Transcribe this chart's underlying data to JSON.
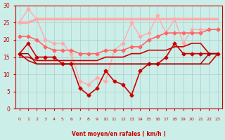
{
  "x": [
    0,
    1,
    2,
    3,
    4,
    5,
    6,
    7,
    8,
    9,
    10,
    11,
    12,
    13,
    14,
    15,
    16,
    17,
    18,
    19,
    20,
    21,
    22,
    23
  ],
  "series": [
    {
      "name": "line1_light_pink_flat",
      "color": "#ffaaaa",
      "lw": 2.5,
      "marker": null,
      "y": [
        25,
        25,
        26,
        26,
        26,
        26,
        26,
        26,
        26,
        26,
        26,
        26,
        26,
        26,
        26,
        26,
        26,
        26,
        26,
        26,
        26,
        26,
        26,
        26
      ]
    },
    {
      "name": "line2_light_pink_wavy",
      "color": "#ffaaaa",
      "lw": 1.0,
      "marker": "D",
      "markersize": 2.5,
      "y": [
        25,
        29,
        26,
        20,
        19,
        19,
        16,
        8,
        7,
        9,
        8,
        17,
        19,
        25,
        21,
        22,
        27,
        22,
        26,
        19,
        23,
        23,
        23,
        23
      ]
    },
    {
      "name": "line3_medium_pink",
      "color": "#ff6666",
      "lw": 1.2,
      "marker": "D",
      "markersize": 2.5,
      "y": [
        21,
        21,
        20,
        18,
        17,
        17,
        17,
        16,
        16,
        16,
        17,
        17,
        17,
        18,
        18,
        20,
        21,
        22,
        22,
        22,
        22,
        22,
        23,
        23
      ]
    },
    {
      "name": "line4_dark_red_diagonal",
      "color": "#cc0000",
      "lw": 1.2,
      "marker": "D",
      "markersize": 2.5,
      "y": [
        16,
        19,
        15,
        15,
        15,
        13,
        13,
        6,
        4,
        6,
        11,
        8,
        7,
        4,
        11,
        13,
        13,
        15,
        19,
        16,
        16,
        16,
        16,
        16
      ]
    },
    {
      "name": "line5_dark_red_flat1",
      "color": "#cc0000",
      "lw": 1.2,
      "marker": null,
      "y": [
        16,
        14,
        13,
        13,
        13,
        13,
        13,
        13,
        13,
        13,
        13,
        13,
        13,
        13,
        13,
        13,
        13,
        13,
        13,
        13,
        13,
        13,
        13,
        16
      ]
    },
    {
      "name": "line6_dark_red_slight_slope",
      "color": "#cc0000",
      "lw": 1.2,
      "marker": null,
      "y": [
        15,
        15,
        14,
        14,
        14,
        14,
        14,
        14,
        14,
        14,
        15,
        15,
        15,
        16,
        16,
        17,
        17,
        17,
        18,
        18,
        19,
        19,
        16,
        16
      ]
    },
    {
      "name": "line7_dark_maroon_flat",
      "color": "#990000",
      "lw": 1.0,
      "marker": null,
      "y": [
        16,
        16,
        13,
        13,
        13,
        13,
        13,
        13,
        13,
        13,
        13,
        13,
        13,
        13,
        13,
        13,
        13,
        13,
        13,
        13,
        13,
        13,
        16,
        16
      ]
    }
  ],
  "xlabel": "Vent moyen/en rafales ( km/h )",
  "xlim": [
    -0.5,
    23.5
  ],
  "ylim": [
    0,
    30
  ],
  "yticks": [
    0,
    5,
    10,
    15,
    20,
    25,
    30
  ],
  "xticks": [
    0,
    1,
    2,
    3,
    4,
    5,
    6,
    7,
    8,
    9,
    10,
    11,
    12,
    13,
    14,
    15,
    16,
    17,
    18,
    19,
    20,
    21,
    22,
    23
  ],
  "bg_color": "#cceee8",
  "grid_color": "#aacccc",
  "xlabel_color": "#cc0000",
  "tick_color": "#cc0000",
  "arrow_dirs": [
    1,
    1,
    1,
    1,
    1,
    1,
    1,
    1,
    1,
    1,
    1,
    1,
    1,
    1,
    0,
    0,
    0,
    0,
    0,
    0,
    0,
    0,
    0,
    0
  ]
}
